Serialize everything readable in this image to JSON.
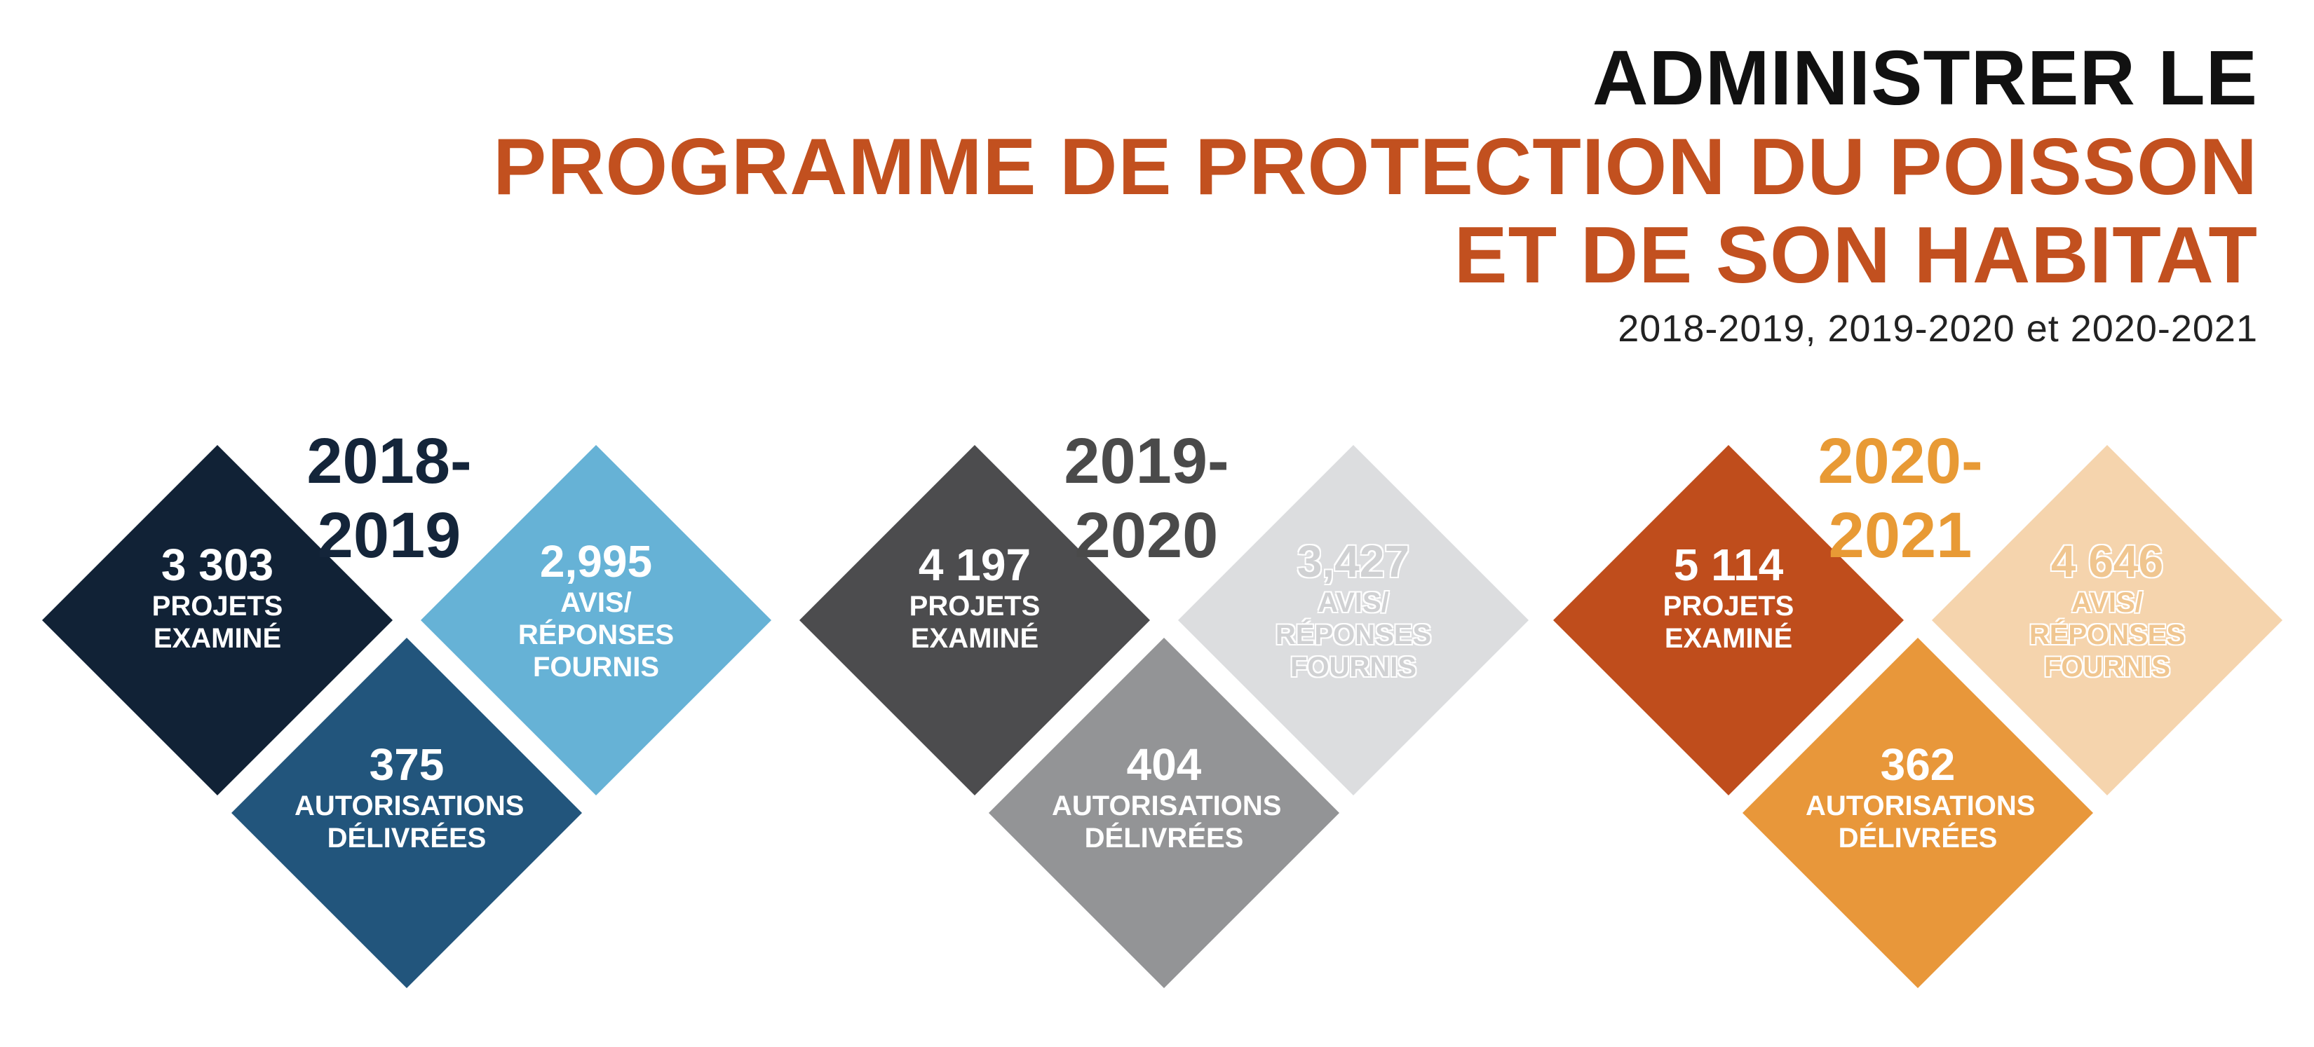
{
  "header": {
    "line1": "ADMINISTRER LE",
    "line2": "PROGRAMME DE PROTECTION DU POISSON",
    "line3": "ET DE SON HABITAT",
    "subtitle": "2018-2019, 2019-2020 et 2020-2021"
  },
  "years": [
    {
      "year_line1": "2018-",
      "year_line2": "2019",
      "year_color": "#14253a",
      "projects": {
        "value": "3 303",
        "line1": "PROJETS",
        "line2": "EXAMINÉ",
        "color": "#112236",
        "text_color": "#ffffff"
      },
      "notices": {
        "value": "2,995",
        "line1": "AVIS/",
        "line2": "RÉPONSES",
        "line3": "FOURNIS",
        "color": "#66b2d6",
        "text_color": "#ffffff"
      },
      "authorizations": {
        "value": "375",
        "line1": "AUTORISATIONS",
        "line2": "DÉLIVRÉES",
        "color": "#22557c",
        "text_color": "#ffffff"
      }
    },
    {
      "year_line1": "2019-",
      "year_line2": "2020",
      "year_color": "#4a4a4a",
      "projects": {
        "value": "4 197",
        "line1": "PROJETS",
        "line2": "EXAMINÉ",
        "color": "#4c4c4e",
        "text_color": "#ffffff"
      },
      "notices": {
        "value": "3,427",
        "line1": "AVIS/",
        "line2": "RÉPONSES",
        "line3": "FOURNIS",
        "color": "#dcdddf",
        "text_color": "#d0d1d3"
      },
      "authorizations": {
        "value": "404",
        "line1": "AUTORISATIONS",
        "line2": "DÉLIVRÉES",
        "color": "#939496",
        "text_color": "#ffffff"
      }
    },
    {
      "year_line1": "2020-",
      "year_line2": "2021",
      "year_color": "#e89a35",
      "projects": {
        "value": "5 114",
        "line1": "PROJETS",
        "line2": "EXAMINÉ",
        "color": "#bf4d1c",
        "text_color": "#ffffff"
      },
      "notices": {
        "value": "4 646",
        "line1": "AVIS/",
        "line2": "RÉPONSES",
        "line3": "FOURNIS",
        "color": "#f5d4ad",
        "text_color": "#f0c690"
      },
      "authorizations": {
        "value": "362",
        "line1": "AUTORISATIONS",
        "line2": "DÉLIVRÉES",
        "color": "#e8973a",
        "text_color": "#ffffff"
      }
    }
  ]
}
